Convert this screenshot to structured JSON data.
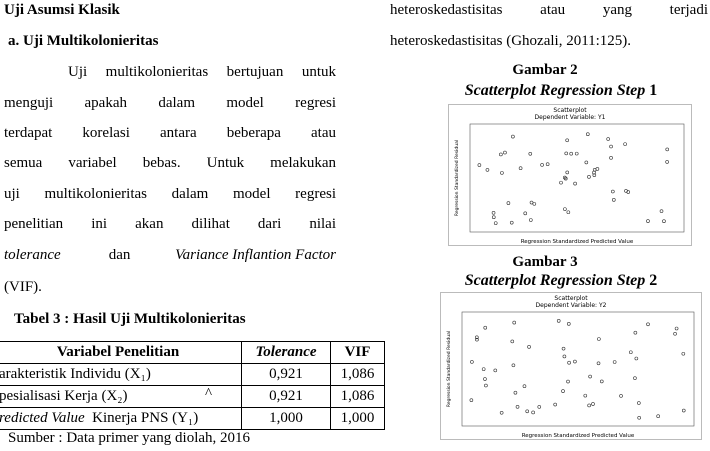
{
  "left": {
    "heading": "Uji Asumsi Klasik",
    "subheading": "a. Uji Multikolonieritas",
    "paragraph": [
      "Uji multikolonieritas bertujuan untuk",
      "menguji apakah dalam model regresi",
      "terdapat korelasi antara beberapa atau",
      "semua variabel bebas. Untuk melakukan",
      "uji multikolonieritas dalam model regresi",
      "penelitian ini akan dilihat dari nilai"
    ],
    "italic_line": [
      "tolerance",
      "dan",
      "Variance Inflantion Factor"
    ],
    "last_line": "(VIF).",
    "table_title": "Tabel 3 : Hasil Uji Multikolonieritas",
    "table": {
      "header": [
        "Variabel Penelitian",
        "Tolerance",
        "VIF"
      ],
      "rows": [
        [
          "arakteristik Individu (X₁)",
          "0,921",
          "1,086"
        ],
        [
          "pesialisasi Kerja (X₂)",
          "0,921",
          "1,086"
        ],
        [
          "Kinerja PNS (Y₁)",
          "1,000",
          "1,000"
        ]
      ],
      "row3_italic": "redicted Value",
      "mark": "^"
    },
    "source": "Sumber : Data primer yang diolah, 2016"
  },
  "right": {
    "lines": [
      "heteroskedastisitas atau yang terjadi",
      "heteroskedastisitas (Ghozali, 2011:125)."
    ],
    "figures": [
      {
        "label": "Gambar 2",
        "caption": "Scatterplot Regression Step",
        "number": "1",
        "plot_title": "Scatterplot",
        "plot_subtitle": "Dependent Variable: Y1",
        "xlabel": "Regression Standardized Predicted Value",
        "ylabel": "Regression Standardized Residual"
      },
      {
        "label": "Gambar 3",
        "caption": "Scatterplot Regression Step",
        "number": "2",
        "plot_title": "Scatterplot",
        "plot_subtitle": "Dependent Variable: Y2",
        "xlabel": "Regression Standardized Predicted Value",
        "ylabel": "Regression Standardized Residual"
      }
    ]
  }
}
